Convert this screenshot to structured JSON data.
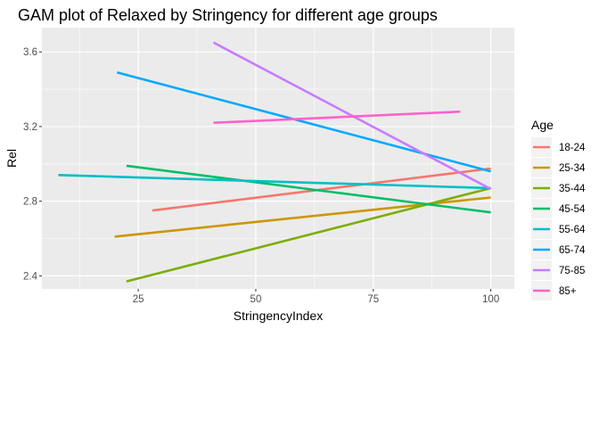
{
  "chart_data": {
    "type": "line",
    "title": "GAM plot of Relaxed by Stringency for different age groups",
    "xlabel": "StringencyIndex",
    "ylabel": "Rel",
    "xlim": [
      4.5,
      105
    ],
    "ylim": [
      2.33,
      3.73
    ],
    "x_ticks": [
      25,
      50,
      75,
      100
    ],
    "y_ticks": [
      2.4,
      2.8,
      3.2,
      3.6
    ],
    "x_tick_labels": [
      "25",
      "50",
      "75",
      "100"
    ],
    "y_tick_labels": [
      "2.4",
      "2.8",
      "3.2",
      "3.6"
    ],
    "grid": true,
    "background": "#EBEBEB",
    "legend_position": "right",
    "legend_title": "Age",
    "series": [
      {
        "name": "18-24",
        "color": "#F8766D",
        "x": [
          28,
          100
        ],
        "y": [
          2.75,
          2.975
        ]
      },
      {
        "name": "25-34",
        "color": "#CD9600",
        "x": [
          20,
          100
        ],
        "y": [
          2.61,
          2.82
        ]
      },
      {
        "name": "35-44",
        "color": "#7CAE00",
        "x": [
          22.5,
          100
        ],
        "y": [
          2.37,
          2.87
        ]
      },
      {
        "name": "45-54",
        "color": "#00BE67",
        "x": [
          22.5,
          100
        ],
        "y": [
          2.99,
          2.74
        ]
      },
      {
        "name": "55-64",
        "color": "#00BFC4",
        "x": [
          8,
          100
        ],
        "y": [
          2.94,
          2.87
        ]
      },
      {
        "name": "65-74",
        "color": "#00A9FF",
        "x": [
          20.5,
          100
        ],
        "y": [
          3.49,
          2.96
        ]
      },
      {
        "name": "75-85",
        "color": "#C77CFF",
        "x": [
          41,
          100
        ],
        "y": [
          3.65,
          2.865
        ]
      },
      {
        "name": "85+",
        "color": "#FF61CC",
        "x": [
          41,
          93.5
        ],
        "y": [
          3.22,
          3.28
        ]
      }
    ]
  }
}
